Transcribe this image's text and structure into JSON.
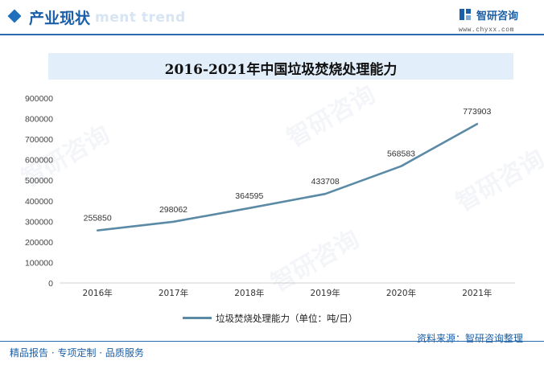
{
  "header": {
    "title": "产业现状",
    "bg_text": "ment trend"
  },
  "logo": {
    "name": "智研咨询",
    "url": "www.chyxx.com"
  },
  "watermark": "智研咨询",
  "chart_data": {
    "type": "line",
    "title": "2016-2021年中国垃圾焚烧处理能力",
    "categories": [
      "2016年",
      "2017年",
      "2018年",
      "2019年",
      "2020年",
      "2021年"
    ],
    "series": [
      {
        "name": "垃圾焚烧处理能力（单位：吨/日）",
        "values": [
          255850,
          298062,
          364595,
          433708,
          568583,
          773903
        ],
        "color": "#5b8aa6"
      }
    ],
    "ylim": [
      0,
      900000
    ],
    "yticks": [
      0,
      100000,
      200000,
      300000,
      400000,
      500000,
      600000,
      700000,
      800000,
      900000
    ],
    "grid": false,
    "data_labels": true,
    "legend_position": "bottom"
  },
  "footer": {
    "left": "精品报告 · 专项定制 · 品质服务",
    "right": "资料来源：智研咨询整理"
  }
}
